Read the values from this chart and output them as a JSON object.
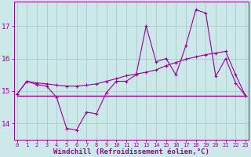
{
  "xlabel": "Windchill (Refroidissement éolien,°C)",
  "background_color": "#cce8e8",
  "grid_color": "#aacccc",
  "line_color": "#990099",
  "x_values": [
    0,
    1,
    2,
    3,
    4,
    5,
    6,
    7,
    8,
    9,
    10,
    11,
    12,
    13,
    14,
    15,
    16,
    17,
    18,
    19,
    20,
    21,
    22,
    23
  ],
  "y_windchill": [
    14.9,
    15.3,
    15.2,
    15.15,
    14.8,
    13.85,
    13.8,
    14.35,
    14.3,
    14.95,
    15.3,
    15.3,
    15.5,
    17.0,
    15.9,
    16.0,
    15.5,
    16.4,
    17.5,
    17.4,
    15.45,
    16.0,
    15.25,
    14.85
  ],
  "y_smooth": [
    14.9,
    15.3,
    15.25,
    15.22,
    15.18,
    15.15,
    15.15,
    15.18,
    15.22,
    15.3,
    15.38,
    15.47,
    15.52,
    15.58,
    15.65,
    15.78,
    15.88,
    15.98,
    16.05,
    16.12,
    16.17,
    16.22,
    15.5,
    14.85
  ],
  "y_flat": [
    14.85,
    14.85,
    14.85,
    14.85,
    14.85,
    14.85,
    14.85,
    14.85,
    14.85,
    14.85,
    14.85,
    14.85,
    14.85,
    14.85,
    14.85,
    14.85,
    14.85,
    14.85,
    14.85,
    14.85,
    14.85,
    14.85,
    14.85,
    14.85
  ],
  "ylim": [
    13.5,
    17.75
  ],
  "xlim": [
    -0.3,
    23.3
  ],
  "yticks": [
    14,
    15,
    16,
    17
  ],
  "xtick_fontsize": 5.0,
  "ytick_fontsize": 6.5,
  "xlabel_fontsize": 6.5
}
